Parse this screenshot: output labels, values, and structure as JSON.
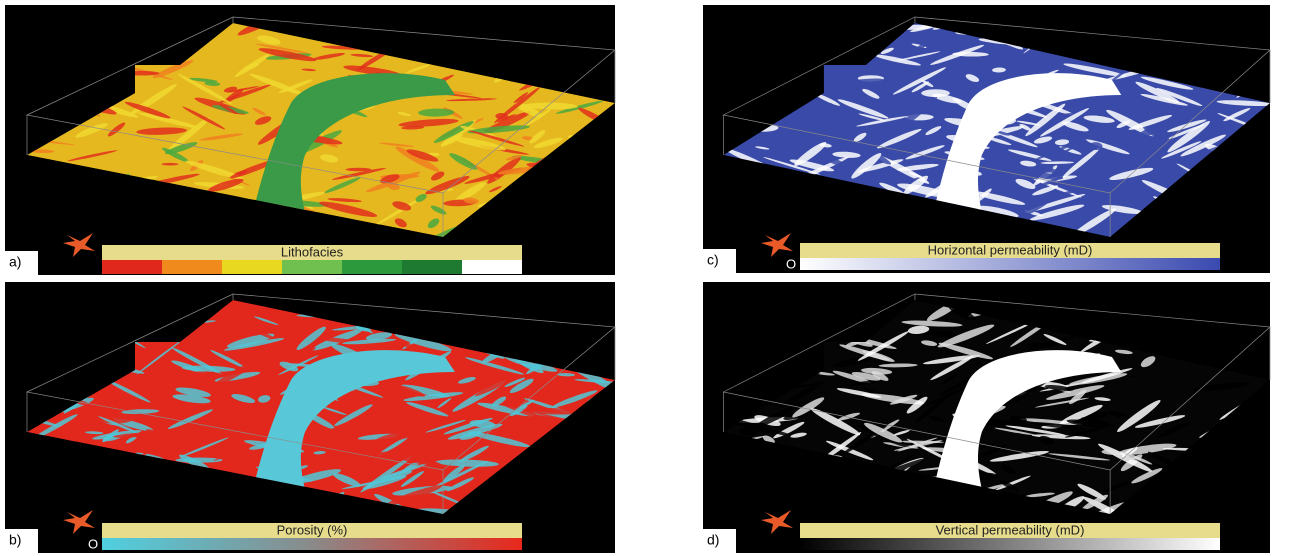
{
  "panels": [
    {
      "label": "a)",
      "colorbar": {
        "title": "Lithofacies"
      }
    },
    {
      "label": "b)",
      "colorbar": {
        "title": "Porosity (%)",
        "min_label": "O"
      }
    },
    {
      "label": "c)",
      "colorbar": {
        "title": "Horizontal permeability (mD)",
        "min_label": "O"
      }
    },
    {
      "label": "d)",
      "colorbar": {
        "title": "Vertical permeability (mD)"
      }
    }
  ]
}
